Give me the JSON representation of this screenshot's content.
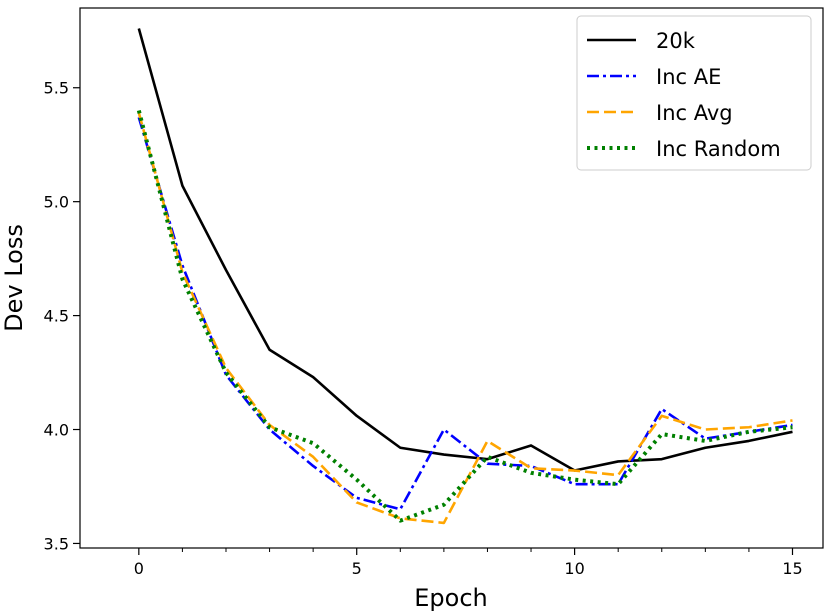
{
  "chart_data": {
    "type": "line",
    "xlabel": "Epoch",
    "ylabel": "Dev Loss",
    "xlim": [
      -1.35,
      15.7
    ],
    "ylim": [
      3.48,
      5.85
    ],
    "xticks": [
      0,
      5,
      10,
      15
    ],
    "yticks": [
      3.5,
      4.0,
      4.5,
      5.0,
      5.5
    ],
    "xtick_labels": [
      "0",
      "5",
      "10",
      "15"
    ],
    "ytick_labels": [
      "3.5",
      "4.0",
      "4.5",
      "5.0",
      "5.5"
    ],
    "x": [
      0,
      1,
      2,
      3,
      4,
      5,
      6,
      7,
      8,
      9,
      10,
      11,
      12,
      13,
      14,
      15
    ],
    "legend_position": "top-right",
    "series": [
      {
        "name": "20k",
        "color": "#000000",
        "style": "solid",
        "values": [
          5.76,
          5.07,
          4.7,
          4.35,
          4.23,
          4.06,
          3.92,
          3.89,
          3.87,
          3.93,
          3.82,
          3.86,
          3.87,
          3.92,
          3.95,
          3.99
        ]
      },
      {
        "name": "Inc AE",
        "color": "#0000ff",
        "style": "dashdot",
        "values": [
          5.37,
          4.72,
          4.24,
          4.0,
          3.84,
          3.7,
          3.65,
          4.0,
          3.85,
          3.84,
          3.76,
          3.76,
          4.09,
          3.96,
          3.99,
          4.02
        ]
      },
      {
        "name": "Inc Avg",
        "color": "#ffa500",
        "style": "dashed",
        "values": [
          5.39,
          4.69,
          4.27,
          4.02,
          3.88,
          3.68,
          3.61,
          3.59,
          3.95,
          3.83,
          3.82,
          3.8,
          4.06,
          4.0,
          4.01,
          4.04
        ]
      },
      {
        "name": "Inc Random",
        "color": "#008000",
        "style": "dotted",
        "values": [
          5.4,
          4.66,
          4.25,
          4.01,
          3.94,
          3.78,
          3.6,
          3.67,
          3.88,
          3.81,
          3.78,
          3.76,
          3.98,
          3.95,
          3.99,
          4.01
        ]
      }
    ]
  }
}
